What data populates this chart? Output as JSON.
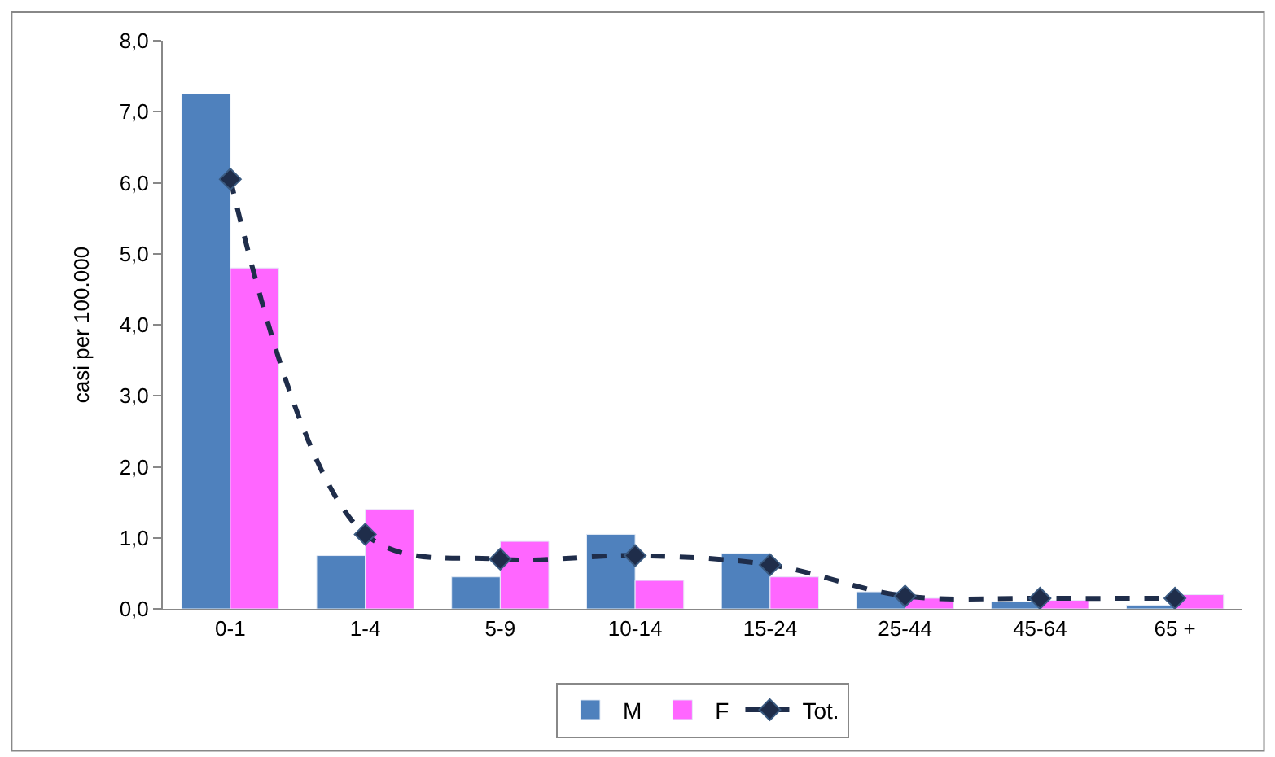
{
  "chart_data": {
    "type": "bar",
    "ylabel": "casi per 100.000",
    "categories": [
      "0-1",
      "1-4",
      "5-9",
      "10-14",
      "15-24",
      "25-44",
      "45-64",
      "65 +"
    ],
    "series": [
      {
        "name": "M",
        "color": "#4f81bd",
        "values": [
          7.25,
          0.75,
          0.45,
          1.05,
          0.78,
          0.24,
          0.1,
          0.05
        ]
      },
      {
        "name": "F",
        "color": "#ff66ff",
        "values": [
          4.8,
          1.4,
          0.95,
          0.4,
          0.45,
          0.15,
          0.12,
          0.2
        ]
      },
      {
        "name": "Tot.",
        "type": "line",
        "color": "#1f2d4a",
        "line_style": "dashed",
        "marker": "diamond",
        "values": [
          6.05,
          1.05,
          0.7,
          0.75,
          0.62,
          0.18,
          0.15,
          0.15
        ]
      }
    ],
    "ylim": [
      0,
      8
    ],
    "yticks": [
      {
        "value": 0,
        "label": "0,0"
      },
      {
        "value": 1,
        "label": "1,0"
      },
      {
        "value": 2,
        "label": "2,0"
      },
      {
        "value": 3,
        "label": "3,0"
      },
      {
        "value": 4,
        "label": "4,0"
      },
      {
        "value": 5,
        "label": "5,0"
      },
      {
        "value": 6,
        "label": "6,0"
      },
      {
        "value": 7,
        "label": "7,0"
      },
      {
        "value": 8,
        "label": "8,0"
      }
    ],
    "legend": "bottom"
  }
}
